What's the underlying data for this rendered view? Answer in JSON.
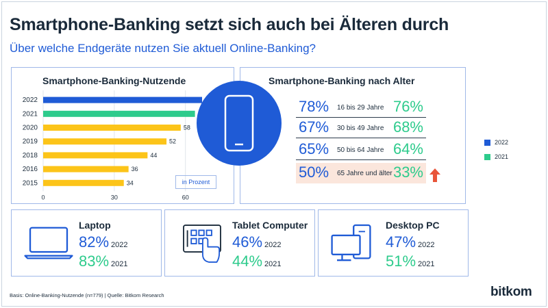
{
  "title": "Smartphone-Banking setzt sich auch bei Älteren durch",
  "subtitle": "Über welche Endgeräte nutzen Sie aktuell Online-Banking?",
  "colors": {
    "blue": "#1f5bd6",
    "green": "#2dcb8c",
    "yellow": "#fcc419",
    "red": "#e8553a",
    "highlight": "#fbe6dc"
  },
  "chart_data": [
    {
      "type": "bar",
      "orientation": "horizontal",
      "title": "Smartphone-Banking-Nutzende",
      "categories": [
        "2022",
        "2021",
        "2020",
        "2019",
        "2018",
        "2016",
        "2015"
      ],
      "values": [
        67,
        64,
        58,
        52,
        44,
        36,
        34
      ],
      "bar_colors": [
        "#1f5bd6",
        "#2dcb8c",
        "#fcc419",
        "#fcc419",
        "#fcc419",
        "#fcc419",
        "#fcc419"
      ],
      "xlim": [
        0,
        67
      ],
      "xticks": [
        0,
        30,
        60
      ],
      "xtick_labels": [
        "0",
        "30",
        "60"
      ],
      "unit_note": "in Prozent",
      "grid": true
    },
    {
      "type": "table",
      "title": "Smartphone-Banking nach Alter",
      "rows": [
        {
          "group": "16 bis 29 Jahre",
          "v2022": "78%",
          "v2021": "76%",
          "highlight": false
        },
        {
          "group": "30 bis 49 Jahre",
          "v2022": "67%",
          "v2021": "68%",
          "highlight": false
        },
        {
          "group": "50 bis 64 Jahre",
          "v2022": "65%",
          "v2021": "64%",
          "highlight": false
        },
        {
          "group": "65 Jahre und älter",
          "v2022": "50%",
          "v2021": "33%",
          "highlight": true
        }
      ],
      "legend": [
        {
          "label": "2022",
          "color": "#1f5bd6"
        },
        {
          "label": "2021",
          "color": "#2dcb8c"
        }
      ]
    }
  ],
  "devices": [
    {
      "name": "Laptop",
      "icon": "laptop-icon",
      "v2022": "82%",
      "v2021": "83%",
      "y2022": "2022",
      "y2021": "2021"
    },
    {
      "name": "Tablet Computer",
      "icon": "tablet-hand-icon",
      "v2022": "46%",
      "v2021": "44%",
      "y2022": "2022",
      "y2021": "2021"
    },
    {
      "name": "Desktop PC",
      "icon": "desktop-pc-icon",
      "v2022": "47%",
      "v2021": "51%",
      "y2022": "2022",
      "y2021": "2021"
    }
  ],
  "source": "Basis: Online-Banking-Nutzende (n=779) | Quelle: Bitkom Research",
  "logo": "bitkom"
}
